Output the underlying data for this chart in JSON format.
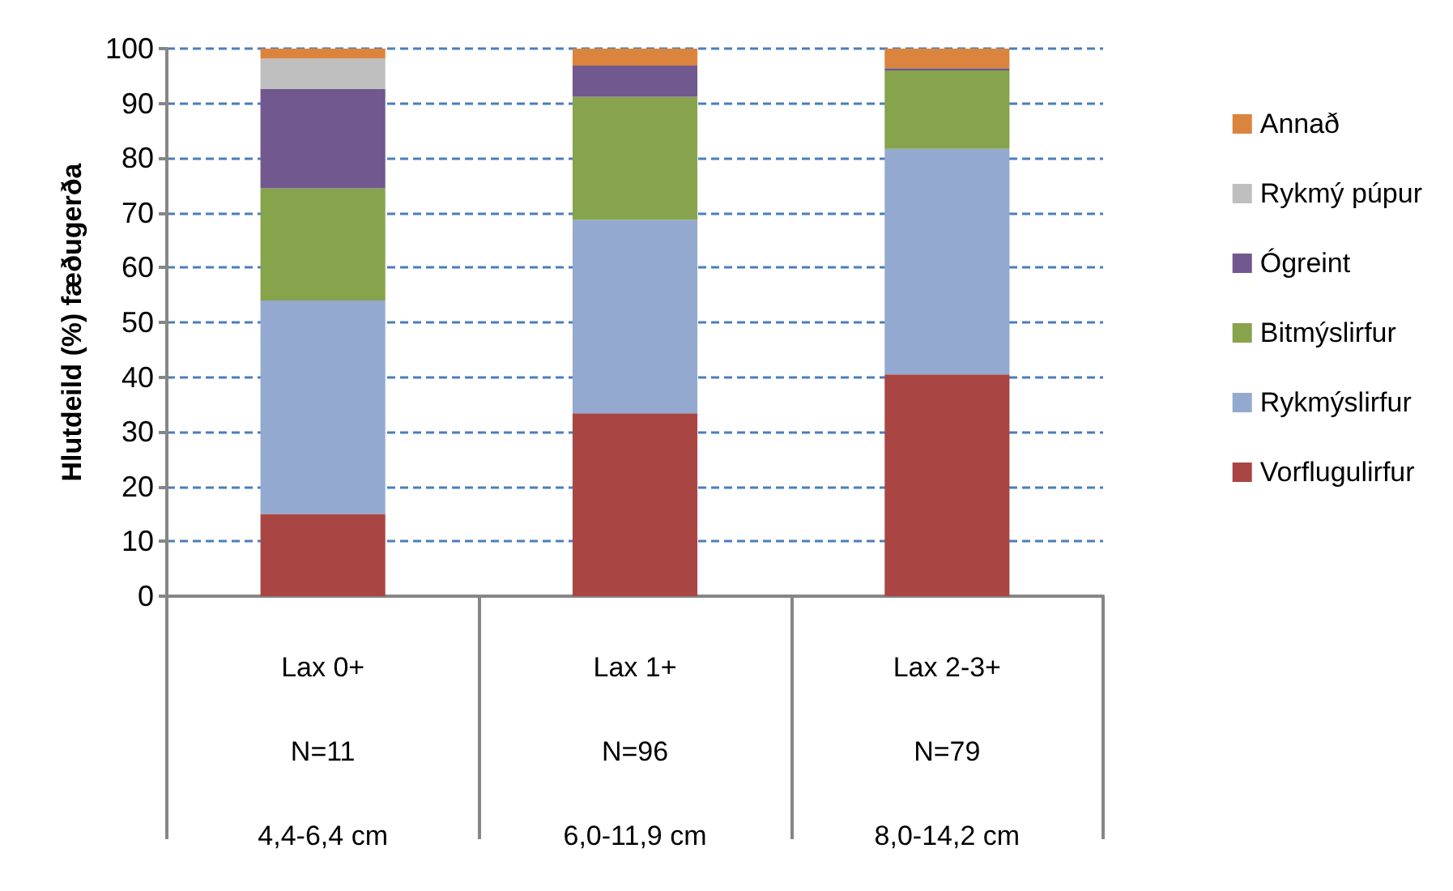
{
  "chart_data": {
    "type": "bar",
    "stacked": true,
    "ylabel": "Hlutdeild (%) fæðugerða",
    "categories": [
      "Lax 0+\nN=11\n4,4-6,4 cm",
      "Lax 1+\nN=96\n6,0-11,9 cm",
      "Lax 2-3+\nN=79\n8,0-14,2 cm"
    ],
    "series": [
      {
        "name": "Vorflugulirfur",
        "color": "#a94643",
        "values": [
          15,
          33.4,
          40.5
        ]
      },
      {
        "name": "Rykmýslirfur",
        "color": "#94a9d0",
        "values": [
          39,
          35.3,
          41.2
        ]
      },
      {
        "name": "Bitmýslirfur",
        "color": "#87a34c",
        "values": [
          20.5,
          22.5,
          14.3
        ]
      },
      {
        "name": "Ógreint",
        "color": "#71588f",
        "values": [
          18.1,
          5.7,
          0.4
        ]
      },
      {
        "name": "Rykmý púpur",
        "color": "#bfbfbf",
        "values": [
          5.6,
          0,
          0
        ]
      },
      {
        "name": "Annað",
        "color": "#db843d",
        "values": [
          1.8,
          3.1,
          3.6
        ]
      }
    ],
    "ylim": [
      0,
      100
    ],
    "yticks": [
      0,
      10,
      20,
      30,
      40,
      50,
      60,
      70,
      80,
      90,
      100
    ],
    "grid": "y",
    "legend": "right"
  }
}
